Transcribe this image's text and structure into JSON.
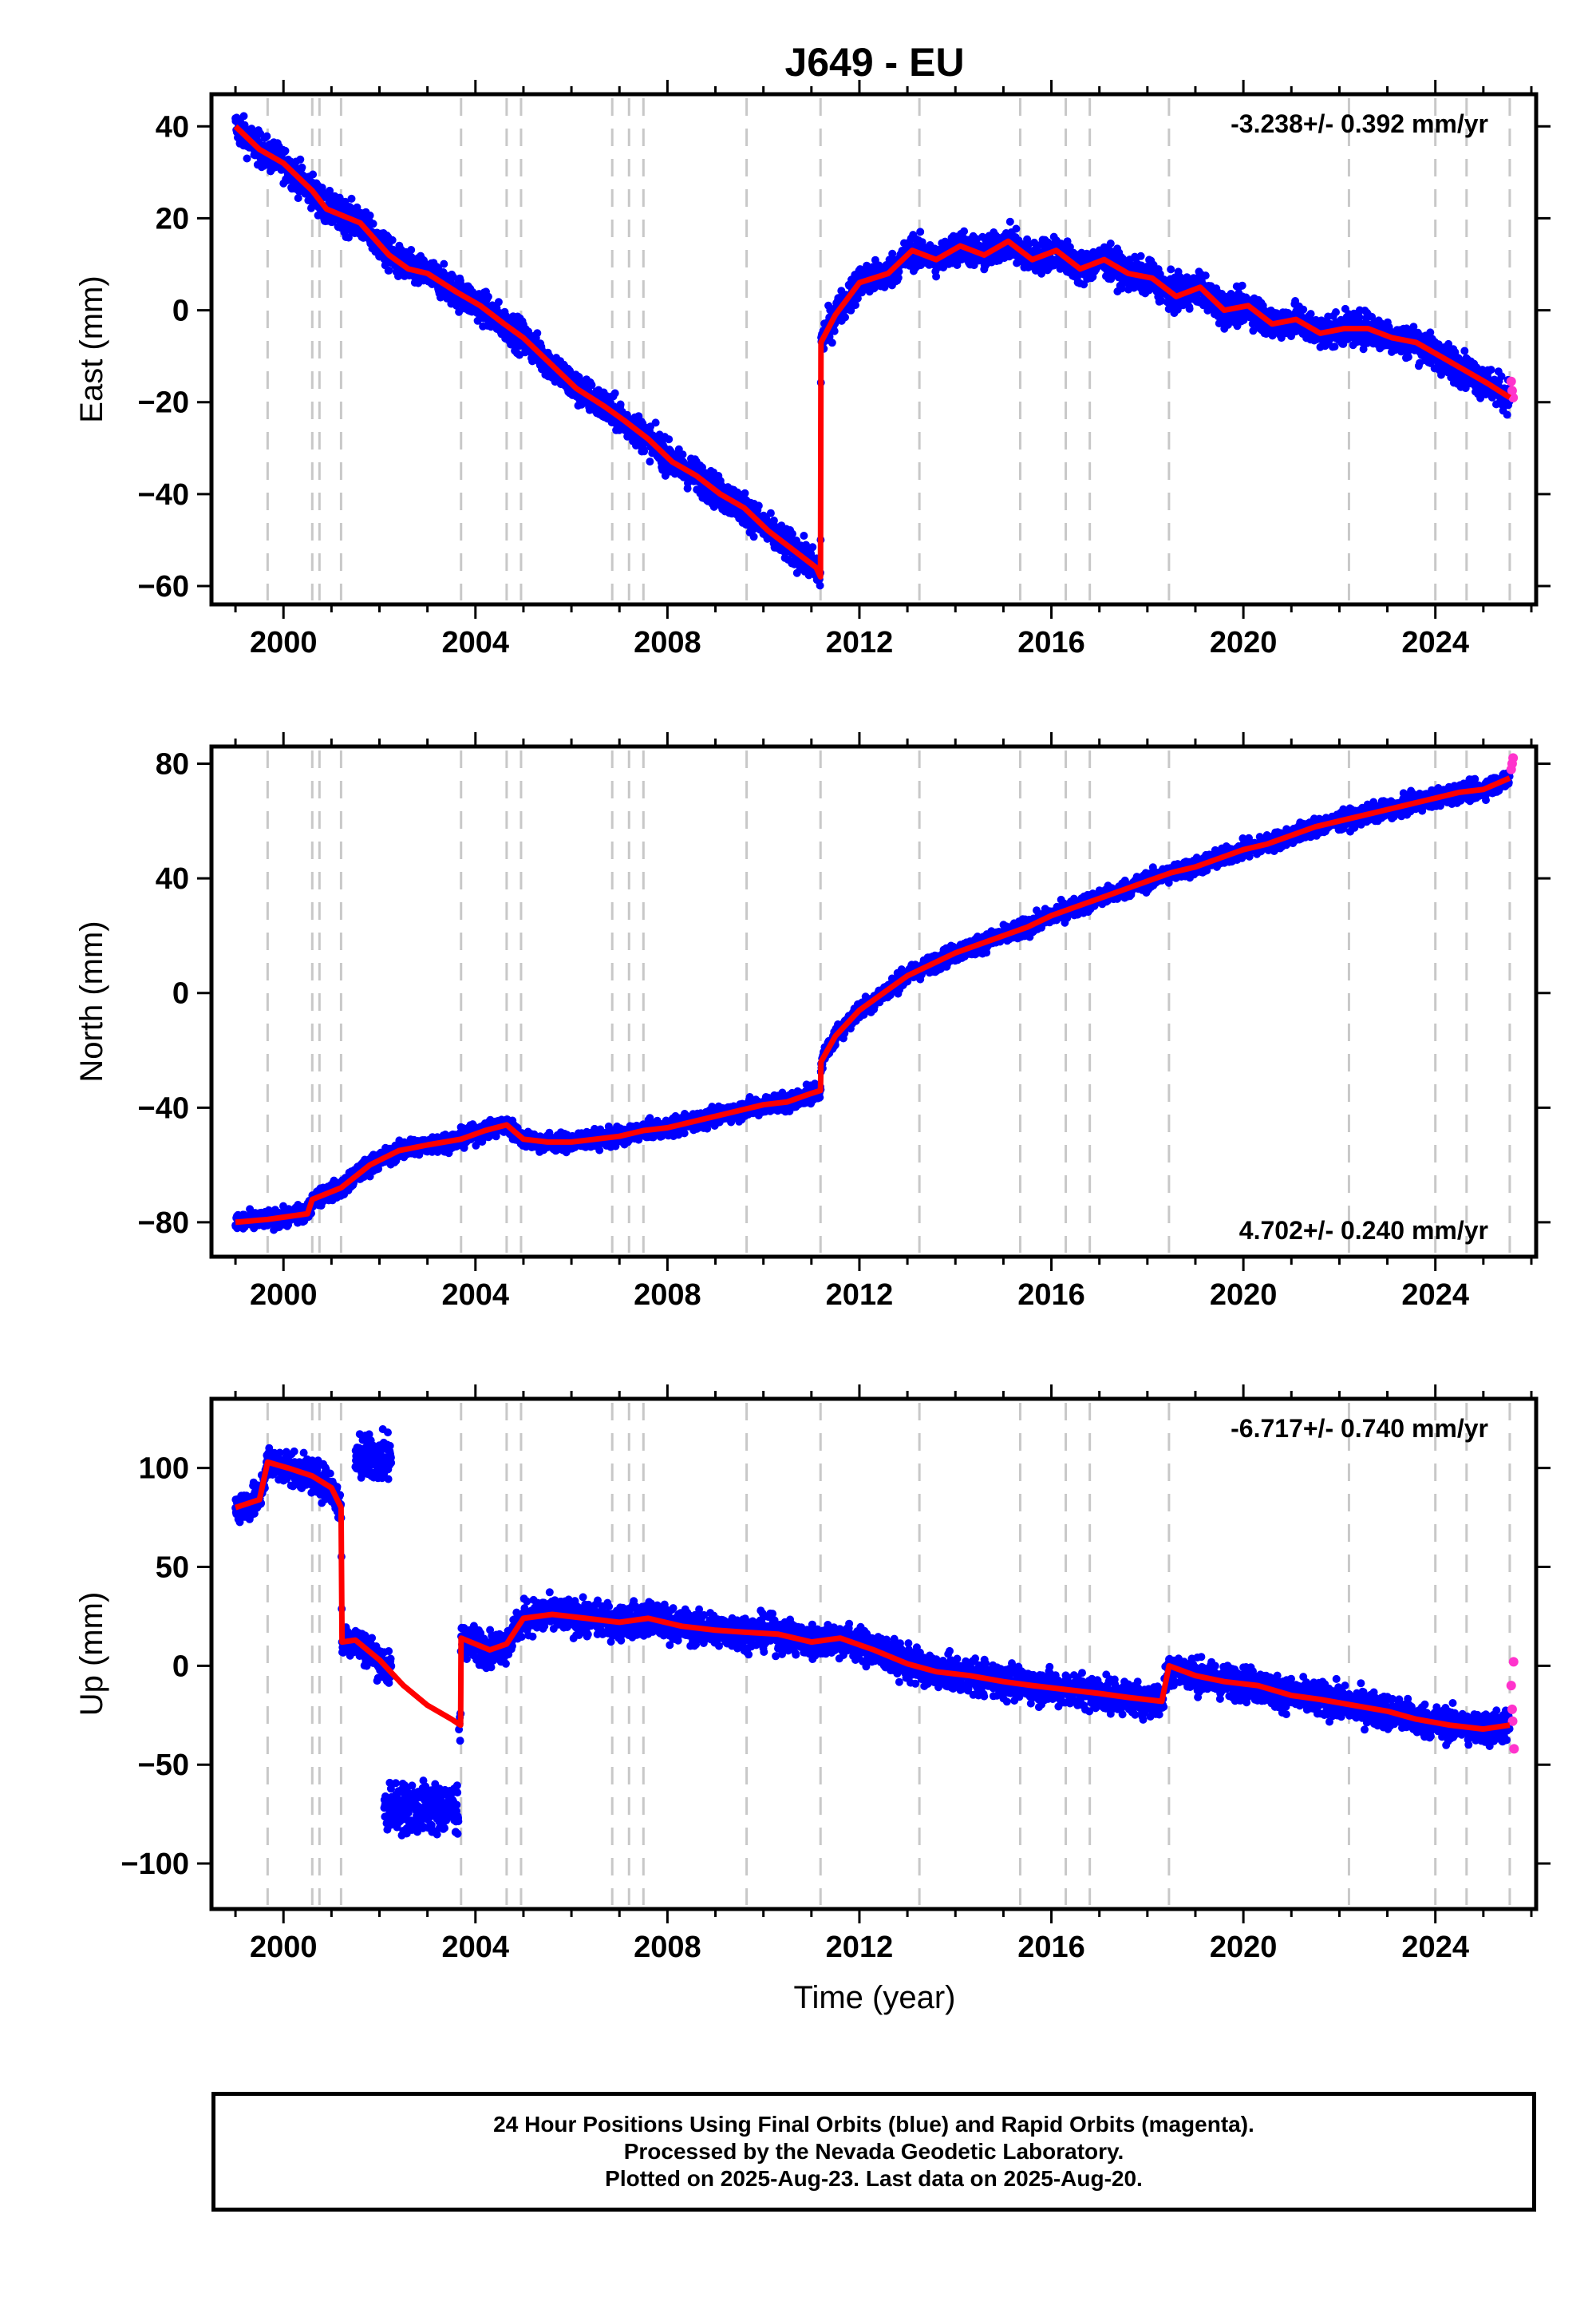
{
  "chart_data": {
    "type": "scatter",
    "title": "J649 - EU",
    "xlabel": "Time (year)",
    "x_ticks": [
      "2000",
      "2004",
      "2008",
      "2012",
      "2016",
      "2020",
      "2024"
    ],
    "xlim": [
      1998.5,
      2026.1
    ],
    "grid": false,
    "event_lines_year": [
      1999.67,
      2000.6,
      2000.75,
      2001.2,
      2003.7,
      2004.65,
      2004.95,
      2006.85,
      2007.2,
      2007.5,
      2009.65,
      2011.19,
      2013.25,
      2015.35,
      2016.3,
      2016.8,
      2018.45,
      2022.2,
      2024.0,
      2024.65,
      2025.55
    ],
    "series_colors": {
      "final_orbits": "#0000ff",
      "rapid_orbits": "#ff33cc",
      "model_fit": "#ff0000",
      "event_lines": "#c8c8c8"
    },
    "panels": [
      {
        "name": "east",
        "ylabel": "East (mm)",
        "ylim": [
          -64,
          47
        ],
        "y_ticks": [
          40,
          20,
          0,
          -20,
          -40,
          -60
        ],
        "rate_label": "-3.238+/- 0.392 mm/yr",
        "rate_position": "top-right",
        "fit": {
          "x": [
            1999.0,
            1999.5,
            2000.0,
            2000.6,
            2000.9,
            2001.6,
            2002.2,
            2002.6,
            2003.0,
            2003.6,
            2004.1,
            2004.6,
            2005.0,
            2005.6,
            2006.1,
            2006.7,
            2007.1,
            2007.6,
            2008.1,
            2008.6,
            2009.1,
            2009.6,
            2010.1,
            2010.6,
            2011.1,
            2011.19,
            2011.2,
            2011.5,
            2012.0,
            2012.6,
            2013.1,
            2013.6,
            2014.1,
            2014.6,
            2015.1,
            2015.6,
            2016.1,
            2016.6,
            2017.1,
            2017.6,
            2018.1,
            2018.6,
            2019.1,
            2019.6,
            2020.1,
            2020.6,
            2021.1,
            2021.6,
            2022.1,
            2022.6,
            2023.1,
            2023.6,
            2024.1,
            2024.6,
            2025.1,
            2025.55
          ],
          "y": [
            40,
            35,
            32,
            26,
            22,
            19,
            12,
            9,
            8,
            4,
            1,
            -3,
            -6,
            -12,
            -17,
            -21,
            -24,
            -28,
            -33,
            -36,
            -40,
            -43,
            -48,
            -52,
            -56,
            -58,
            -7,
            -1,
            6,
            8,
            13,
            11,
            14,
            12,
            15,
            11,
            13,
            9,
            11,
            8,
            7,
            3,
            5,
            0,
            1,
            -3,
            -2,
            -5,
            -4,
            -4,
            -6,
            -7,
            -10,
            -13,
            -16,
            -19
          ]
        },
        "scatter_spread": 2.5,
        "rapid_points": [
          [
            2025.58,
            -15.5
          ],
          [
            2025.6,
            -17.5
          ],
          [
            2025.62,
            -19
          ]
        ]
      },
      {
        "name": "north",
        "ylabel": "North (mm)",
        "ylim": [
          -92,
          86
        ],
        "y_ticks": [
          80,
          40,
          0,
          -40,
          -80
        ],
        "rate_label": "4.702+/- 0.240 mm/yr",
        "rate_position": "bottom-right",
        "fit": {
          "x": [
            1999.0,
            1999.67,
            2000.5,
            2000.6,
            2001.2,
            2001.8,
            2002.4,
            2003.0,
            2003.7,
            2004.2,
            2004.65,
            2005.0,
            2005.5,
            2006.0,
            2006.5,
            2007.0,
            2007.5,
            2008.0,
            2008.5,
            2009.0,
            2009.5,
            2010.0,
            2010.5,
            2011.0,
            2011.19,
            2011.2,
            2011.5,
            2012.0,
            2012.5,
            2013.0,
            2013.5,
            2014.0,
            2014.5,
            2015.0,
            2015.5,
            2016.0,
            2016.5,
            2017.0,
            2017.5,
            2018.0,
            2018.5,
            2019.0,
            2019.5,
            2020.0,
            2020.5,
            2021.0,
            2021.5,
            2022.0,
            2022.5,
            2023.0,
            2023.5,
            2024.0,
            2024.5,
            2025.0,
            2025.55
          ],
          "y": [
            -80,
            -79,
            -77,
            -72,
            -68,
            -60,
            -55,
            -53,
            -51,
            -48,
            -46,
            -51,
            -52,
            -52,
            -51,
            -50,
            -48,
            -47,
            -45,
            -43,
            -41,
            -39,
            -38,
            -35,
            -34,
            -24,
            -15,
            -6,
            0,
            6,
            10,
            14,
            17,
            20,
            23,
            27,
            30,
            33,
            36,
            39,
            42,
            44,
            47,
            50,
            52,
            55,
            58,
            60,
            62,
            64,
            66,
            68,
            70,
            71,
            75
          ]
        },
        "scatter_spread": 2.2,
        "rapid_points": [
          [
            2025.58,
            78
          ],
          [
            2025.6,
            80
          ],
          [
            2025.62,
            82
          ]
        ]
      },
      {
        "name": "up",
        "ylabel": "Up (mm)",
        "ylim": [
          -123,
          135
        ],
        "y_ticks": [
          100,
          50,
          0,
          -50,
          -100
        ],
        "rate_label": "-6.717+/- 0.740 mm/yr",
        "rate_position": "top-right",
        "fit": {
          "x": [
            1999.0,
            1999.5,
            1999.67,
            2000.1,
            2000.6,
            2001.0,
            2001.2,
            2001.22,
            2001.5,
            2002.0,
            2002.5,
            2003.0,
            2003.5,
            2003.69,
            2003.7,
            2004.3,
            2004.65,
            2005.0,
            2005.6,
            2006.3,
            2007.0,
            2007.6,
            2008.3,
            2009.0,
            2009.6,
            2010.3,
            2011.0,
            2011.6,
            2012.3,
            2013.0,
            2013.6,
            2014.3,
            2015.0,
            2015.6,
            2016.3,
            2017.0,
            2017.6,
            2018.3,
            2018.45,
            2019.0,
            2019.6,
            2020.3,
            2021.0,
            2021.6,
            2022.3,
            2023.0,
            2023.6,
            2024.3,
            2025.0,
            2025.55
          ],
          "y": [
            80,
            84,
            103,
            100,
            96,
            90,
            80,
            12,
            13,
            3,
            -10,
            -20,
            -27,
            -30,
            14,
            8,
            11,
            24,
            26,
            24,
            22,
            24,
            20,
            18,
            17,
            16,
            12,
            14,
            8,
            1,
            -3,
            -5,
            -8,
            -10,
            -12,
            -14,
            -16,
            -18,
            0,
            -5,
            -8,
            -10,
            -15,
            -17,
            -20,
            -23,
            -27,
            -30,
            -32,
            -30
          ]
        },
        "scatter_spread": 6,
        "extra_scatter": [
          {
            "x_range": [
              2001.5,
              2002.25
            ],
            "y_mean": 105,
            "spread": 8
          },
          {
            "x_range": [
              2002.1,
              2003.65
            ],
            "y_mean": -72,
            "spread": 9
          }
        ],
        "rapid_points": [
          [
            2025.58,
            -10
          ],
          [
            2025.6,
            -22
          ],
          [
            2025.61,
            -28
          ],
          [
            2025.63,
            2
          ],
          [
            2025.64,
            -42
          ]
        ]
      }
    ]
  },
  "footer": {
    "line1": "24 Hour Positions Using Final Orbits (blue) and Rapid Orbits (magenta).",
    "line2": "Processed by the Nevada Geodetic Laboratory.",
    "line3": "Plotted on 2025-Aug-23. Last data on 2025-Aug-20."
  }
}
